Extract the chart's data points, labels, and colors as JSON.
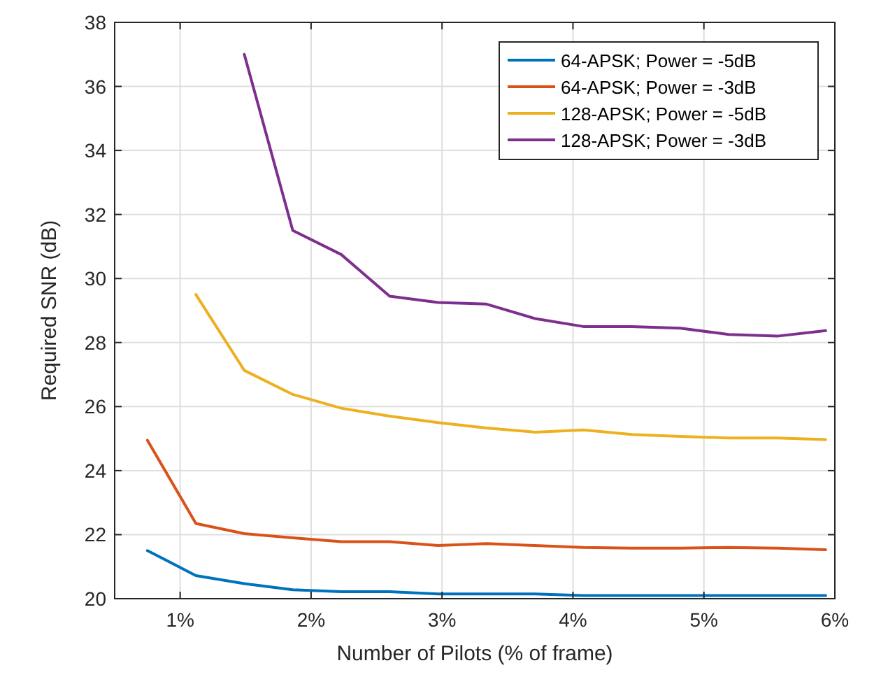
{
  "chart_data": {
    "type": "line",
    "xlabel": "Number of Pilots (% of frame)",
    "ylabel": "Required SNR (dB)",
    "x": [
      0.75,
      1.12,
      1.49,
      1.86,
      2.23,
      2.6,
      2.97,
      3.34,
      3.71,
      4.08,
      4.45,
      4.82,
      5.19,
      5.56,
      5.93
    ],
    "series": [
      {
        "name": "64-APSK; Power = -5dB",
        "color": "#0072bd",
        "values": [
          21.5,
          20.72,
          20.47,
          20.28,
          20.22,
          20.22,
          20.15,
          20.15,
          20.15,
          20.1,
          20.1,
          20.1,
          20.1,
          20.1,
          20.1
        ]
      },
      {
        "name": "64-APSK; Power = -3dB",
        "color": "#d95319",
        "values": [
          24.95,
          22.35,
          22.03,
          21.9,
          21.78,
          21.78,
          21.66,
          21.72,
          21.66,
          21.6,
          21.58,
          21.58,
          21.6,
          21.58,
          21.53
        ]
      },
      {
        "name": "128-APSK; Power = -5dB",
        "color": "#edb120",
        "values": [
          null,
          29.5,
          27.13,
          26.38,
          25.95,
          25.7,
          25.5,
          25.33,
          25.2,
          25.27,
          25.13,
          25.07,
          25.02,
          25.02,
          24.97
        ]
      },
      {
        "name": "128-APSK; Power = -3dB",
        "color": "#7e2f8e",
        "values": [
          null,
          null,
          37.0,
          31.5,
          30.75,
          29.45,
          29.25,
          29.2,
          28.75,
          28.5,
          28.5,
          28.45,
          28.25,
          28.2,
          28.37
        ]
      }
    ],
    "xlim": [
      0.5,
      6
    ],
    "xticks": [
      {
        "value": 1,
        "label": "1%"
      },
      {
        "value": 2,
        "label": "2%"
      },
      {
        "value": 3,
        "label": "3%"
      },
      {
        "value": 4,
        "label": "4%"
      },
      {
        "value": 5,
        "label": "5%"
      },
      {
        "value": 6,
        "label": "6%"
      }
    ],
    "ylim": [
      20,
      38
    ],
    "yticks": [
      20,
      22,
      24,
      26,
      28,
      30,
      32,
      34,
      36,
      38
    ],
    "grid": true,
    "legend": "top right",
    "line_style": "solid"
  }
}
